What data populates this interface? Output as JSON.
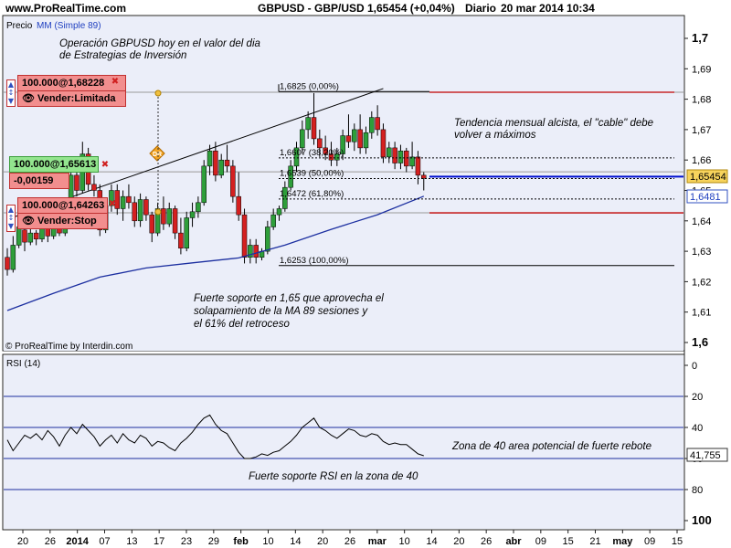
{
  "header": {
    "site": "www.ProRealTime.com",
    "symbol": "GBPUSD - GBP/USD",
    "price_change": "1,65454 (+0,04%)",
    "period": "Diario",
    "date": "20 mar 2014 10:34"
  },
  "price_panel": {
    "label_price": "Precio",
    "label_ma": "MM (Simple 89)",
    "credit": "© ProRealTime by Interdin.com",
    "y_ticks": [
      "1,7",
      "1,69",
      "1,68",
      "1,67",
      "1,66",
      "1,65",
      "1,64",
      "1,63",
      "1,62",
      "1,61",
      "1,6"
    ],
    "last_price_label": "1,65454",
    "ma_label": "1,6481",
    "annotations": {
      "title_1": "Operación GBPUSD hoy en el valor del dia",
      "title_2": "de Estrategias de Inversión",
      "trend_1": "Tendencia mensual alcista, el \"cable\" debe",
      "trend_2": "volver a máximos",
      "support_1": "Fuerte soporte en 1,65 que aprovecha el",
      "support_2": "solapamiento de la MA 89 sesiones y",
      "support_3": "el 61% del retroceso"
    },
    "fib_labels": [
      "1,6825 (0,00%)",
      "1,6607 (38,20%)",
      "1,6539 (50,00%)",
      "1,6472 (61,80%)",
      "1,6253 (100,00%)"
    ],
    "orders": {
      "sell_limit_price": "100.000@1,68228",
      "sell_limit_action": "Vender:Limitada",
      "position_price": "100.000@1,65613",
      "position_pl": "-0,00159",
      "sell_stop_price": "100.000@1,64263",
      "sell_stop_action": "Vender:Stop"
    },
    "marker": "DR"
  },
  "rsi_panel": {
    "label": "RSI (14)",
    "y_ticks": [
      "100",
      "80",
      "60",
      "40",
      "20",
      "0"
    ],
    "value_label": "41,755",
    "annotation_zone": "Zona de 40 area potencial de fuerte rebote",
    "annotation_support": "Fuerte soporte RSI en la zona de 40"
  },
  "x_axis": {
    "labels": [
      "20",
      "26",
      "2014",
      "07",
      "13",
      "17",
      "23",
      "29",
      "feb",
      "10",
      "14",
      "20",
      "26",
      "mar",
      "10",
      "14",
      "20",
      "26",
      "abr",
      "09",
      "15",
      "21",
      "may",
      "09",
      "15"
    ]
  },
  "colors": {
    "bull": "#2e9e3a",
    "bear": "#d42020",
    "ma": "#1c2fa0",
    "panel_bg": "#ebeef9",
    "resistance": "#c00000",
    "current_price": "#0010d0"
  },
  "chart_data": [
    {
      "type": "candlestick",
      "title": "GBPUSD - GBP/USD",
      "ylim": [
        1.6,
        1.7
      ],
      "y_ticks": [
        1.6,
        1.61,
        1.62,
        1.63,
        1.64,
        1.65,
        1.66,
        1.67,
        1.68,
        1.69,
        1.7
      ],
      "ohlc": [
        [
          1.628,
          1.631,
          1.622,
          1.624
        ],
        [
          1.624,
          1.635,
          1.623,
          1.632
        ],
        [
          1.632,
          1.64,
          1.631,
          1.638
        ],
        [
          1.637,
          1.639,
          1.63,
          1.633
        ],
        [
          1.633,
          1.638,
          1.632,
          1.636
        ],
        [
          1.636,
          1.637,
          1.632,
          1.634
        ],
        [
          1.634,
          1.64,
          1.633,
          1.638
        ],
        [
          1.638,
          1.639,
          1.633,
          1.635
        ],
        [
          1.635,
          1.643,
          1.634,
          1.641
        ],
        [
          1.641,
          1.643,
          1.635,
          1.636
        ],
        [
          1.636,
          1.646,
          1.635,
          1.644
        ],
        [
          1.644,
          1.657,
          1.642,
          1.655
        ],
        [
          1.655,
          1.658,
          1.648,
          1.65
        ],
        [
          1.65,
          1.666,
          1.649,
          1.662
        ],
        [
          1.662,
          1.664,
          1.65,
          1.652
        ],
        [
          1.652,
          1.655,
          1.648,
          1.65
        ],
        [
          1.65,
          1.652,
          1.635,
          1.637
        ],
        [
          1.637,
          1.647,
          1.636,
          1.645
        ],
        [
          1.645,
          1.652,
          1.643,
          1.65
        ],
        [
          1.65,
          1.652,
          1.642,
          1.644
        ],
        [
          1.644,
          1.65,
          1.64,
          1.648
        ],
        [
          1.648,
          1.652,
          1.644,
          1.646
        ],
        [
          1.646,
          1.648,
          1.638,
          1.64
        ],
        [
          1.64,
          1.649,
          1.638,
          1.647
        ],
        [
          1.647,
          1.648,
          1.64,
          1.642
        ],
        [
          1.642,
          1.643,
          1.633,
          1.636
        ],
        [
          1.636,
          1.646,
          1.635,
          1.644
        ],
        [
          1.644,
          1.648,
          1.637,
          1.639
        ],
        [
          1.639,
          1.646,
          1.638,
          1.644
        ],
        [
          1.644,
          1.645,
          1.634,
          1.636
        ],
        [
          1.636,
          1.641,
          1.629,
          1.631
        ],
        [
          1.631,
          1.643,
          1.63,
          1.641
        ],
        [
          1.641,
          1.646,
          1.638,
          1.643
        ],
        [
          1.643,
          1.648,
          1.641,
          1.646
        ],
        [
          1.646,
          1.66,
          1.645,
          1.658
        ],
        [
          1.658,
          1.665,
          1.655,
          1.663
        ],
        [
          1.663,
          1.666,
          1.653,
          1.655
        ],
        [
          1.655,
          1.662,
          1.654,
          1.66
        ],
        [
          1.66,
          1.665,
          1.656,
          1.658
        ],
        [
          1.658,
          1.66,
          1.646,
          1.648
        ],
        [
          1.648,
          1.656,
          1.64,
          1.642
        ],
        [
          1.642,
          1.644,
          1.626,
          1.628
        ],
        [
          1.628,
          1.634,
          1.626,
          1.632
        ],
        [
          1.632,
          1.634,
          1.626,
          1.628
        ],
        [
          1.628,
          1.631,
          1.627,
          1.63
        ],
        [
          1.63,
          1.64,
          1.629,
          1.638
        ],
        [
          1.638,
          1.644,
          1.637,
          1.642
        ],
        [
          1.642,
          1.645,
          1.64,
          1.644
        ],
        [
          1.644,
          1.653,
          1.643,
          1.651
        ],
        [
          1.651,
          1.66,
          1.65,
          1.658
        ],
        [
          1.658,
          1.666,
          1.656,
          1.664
        ],
        [
          1.664,
          1.673,
          1.662,
          1.67
        ],
        [
          1.67,
          1.676,
          1.667,
          1.674
        ],
        [
          1.674,
          1.682,
          1.665,
          1.667
        ],
        [
          1.667,
          1.67,
          1.661,
          1.664
        ],
        [
          1.664,
          1.668,
          1.66,
          1.662
        ],
        [
          1.662,
          1.666,
          1.658,
          1.66
        ],
        [
          1.66,
          1.664,
          1.658,
          1.662
        ],
        [
          1.662,
          1.67,
          1.66,
          1.668
        ],
        [
          1.668,
          1.675,
          1.664,
          1.666
        ],
        [
          1.666,
          1.672,
          1.663,
          1.67
        ],
        [
          1.67,
          1.675,
          1.662,
          1.664
        ],
        [
          1.664,
          1.671,
          1.662,
          1.669
        ],
        [
          1.669,
          1.676,
          1.667,
          1.674
        ],
        [
          1.674,
          1.678,
          1.668,
          1.67
        ],
        [
          1.67,
          1.672,
          1.659,
          1.661
        ],
        [
          1.661,
          1.666,
          1.659,
          1.664
        ],
        [
          1.664,
          1.666,
          1.657,
          1.659
        ],
        [
          1.659,
          1.665,
          1.657,
          1.663
        ],
        [
          1.663,
          1.664,
          1.656,
          1.658
        ],
        [
          1.658,
          1.666,
          1.657,
          1.661
        ],
        [
          1.661,
          1.663,
          1.652,
          1.655
        ],
        [
          1.655,
          1.656,
          1.65,
          1.654
        ]
      ],
      "moving_average": {
        "name": "MM (Simple 89)",
        "x_index": [
          0,
          8,
          16,
          24,
          32,
          40,
          48,
          56,
          64,
          72
        ],
        "values": [
          1.6105,
          1.6162,
          1.6215,
          1.6245,
          1.6262,
          1.6278,
          1.632,
          1.6372,
          1.642,
          1.6481
        ]
      },
      "trendline": {
        "from": [
          0,
          1.6405
        ],
        "to": [
          65,
          1.6835
        ]
      },
      "fibonacci": {
        "levels": [
          1.6825,
          1.6607,
          1.6539,
          1.6472,
          1.6253
        ],
        "pct": [
          "0,00%",
          "38,20%",
          "50,00%",
          "61,80%",
          "100,00%"
        ]
      },
      "horizontal_lines": {
        "sell_limit": 1.68228,
        "position": 1.65613,
        "sell_stop": 1.64263,
        "current_price": 1.65454,
        "resistance": 1.68228,
        "support": 1.64263
      },
      "last_price": 1.65454,
      "ma_last": 1.6481
    },
    {
      "type": "line",
      "title": "RSI (14)",
      "ylim": [
        -5,
        104
      ],
      "y_ticks": [
        0,
        20,
        40,
        60,
        80,
        100
      ],
      "horizontal_lines": [
        20,
        40,
        60,
        80
      ],
      "values": [
        52,
        45,
        50,
        55,
        53,
        56,
        52,
        58,
        54,
        48,
        55,
        60,
        56,
        62,
        58,
        54,
        48,
        52,
        55,
        50,
        56,
        52,
        50,
        55,
        53,
        48,
        51,
        50,
        47,
        45,
        50,
        53,
        57,
        62,
        66,
        68,
        62,
        58,
        56,
        50,
        44,
        40,
        40,
        41,
        43,
        42,
        44,
        45,
        48,
        51,
        55,
        60,
        63,
        66,
        60,
        58,
        55,
        53,
        56,
        59,
        58,
        55,
        54,
        56,
        55,
        51,
        49,
        50,
        49,
        49,
        46,
        43,
        41.755
      ],
      "last_value": 41.755
    }
  ]
}
